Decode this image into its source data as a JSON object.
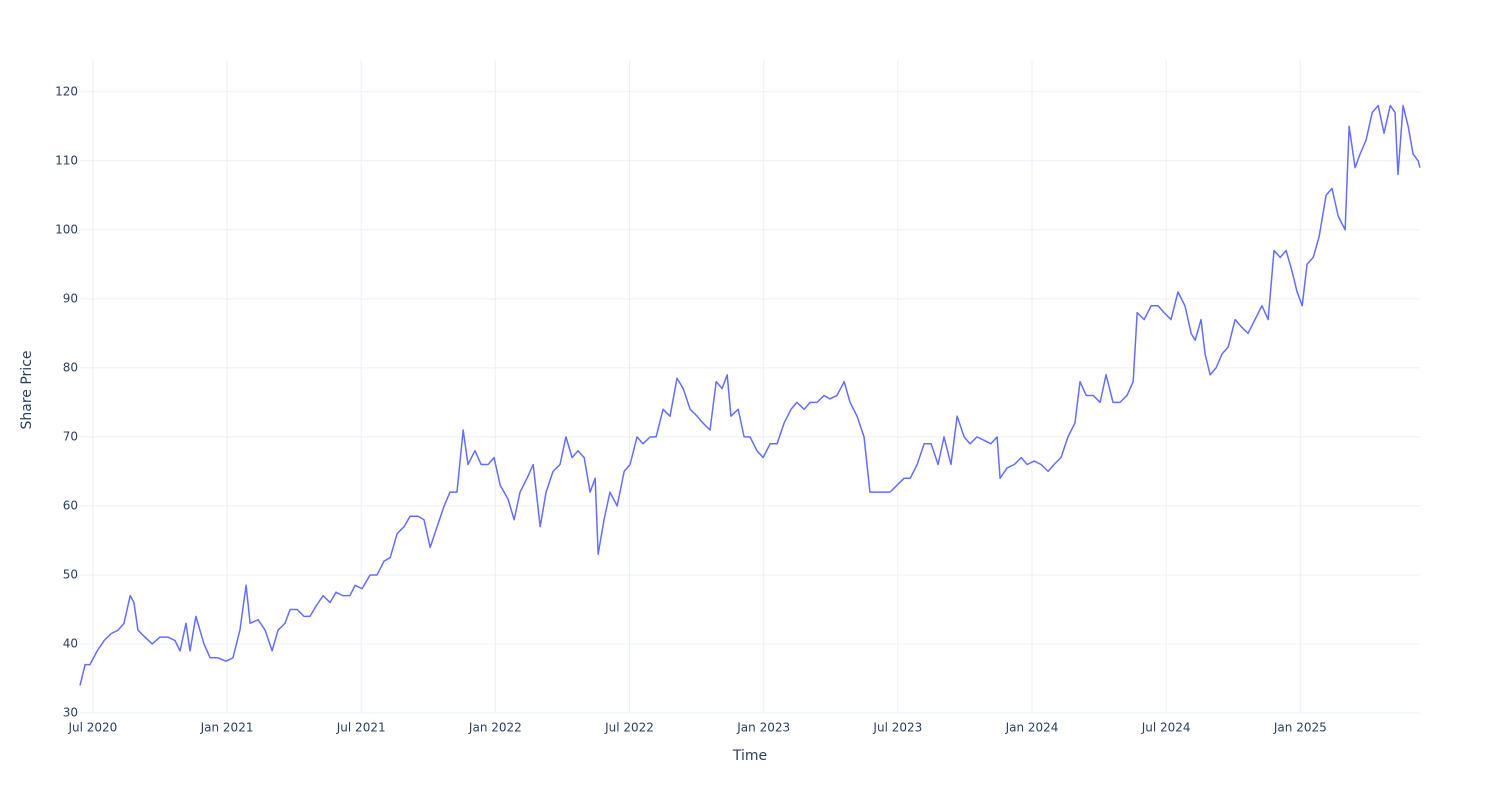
{
  "chart_data": {
    "type": "line",
    "xlabel": "Time",
    "ylabel": "Share Price",
    "xlim": [
      2020.452,
      2025.446
    ],
    "ylim": [
      30,
      124.6
    ],
    "xticks": [
      {
        "value": 2020.5,
        "label": "Jul 2020"
      },
      {
        "value": 2021,
        "label": "Jan 2021"
      },
      {
        "value": 2021.5,
        "label": "Jul 2021"
      },
      {
        "value": 2022,
        "label": "Jan 2022"
      },
      {
        "value": 2022.5,
        "label": "Jul 2022"
      },
      {
        "value": 2023,
        "label": "Jan 2023"
      },
      {
        "value": 2023.5,
        "label": "Jul 2023"
      },
      {
        "value": 2024,
        "label": "Jan 2024"
      },
      {
        "value": 2024.5,
        "label": "Jul 2024"
      },
      {
        "value": 2025,
        "label": "Jan 2025"
      }
    ],
    "yticks": [
      30,
      40,
      50,
      60,
      70,
      80,
      90,
      100,
      110,
      120
    ],
    "grid": true,
    "series": [
      {
        "color": "#636efa",
        "x": [
          2020.452,
          2020.471,
          2020.489,
          2020.516,
          2020.542,
          2020.568,
          2020.594,
          2020.616,
          2020.639,
          2020.653,
          2020.668,
          2020.694,
          2020.721,
          2020.75,
          2020.78,
          2020.806,
          2020.825,
          2020.847,
          2020.862,
          2020.884,
          2020.914,
          2020.937,
          2020.966,
          2020.996,
          2021.022,
          2021.048,
          2021.071,
          2021.086,
          2021.116,
          2021.142,
          2021.168,
          2021.19,
          2021.216,
          2021.235,
          2021.261,
          2021.287,
          2021.309,
          2021.332,
          2021.358,
          2021.384,
          2021.406,
          2021.432,
          2021.458,
          2021.477,
          2021.503,
          2021.533,
          2021.559,
          2021.585,
          2021.608,
          2021.634,
          2021.66,
          2021.682,
          2021.712,
          2021.734,
          2021.757,
          2021.783,
          2021.809,
          2021.831,
          2021.857,
          2021.88,
          2021.898,
          2021.924,
          2021.947,
          2021.973,
          2021.995,
          2022.018,
          2022.047,
          2022.07,
          2022.092,
          2022.118,
          2022.141,
          2022.167,
          2022.189,
          2022.215,
          2022.241,
          2022.263,
          2022.286,
          2022.308,
          2022.331,
          2022.353,
          2022.372,
          2022.383,
          2022.405,
          2022.427,
          2022.454,
          2022.48,
          2022.502,
          2022.528,
          2022.55,
          2022.577,
          2022.599,
          2022.625,
          2022.651,
          2022.677,
          2022.7,
          2022.726,
          2022.752,
          2022.774,
          2022.8,
          2022.823,
          2022.845,
          2022.864,
          2022.878,
          2022.905,
          2022.927,
          2022.949,
          2022.975,
          2022.998,
          2023.024,
          2023.05,
          2023.076,
          2023.102,
          2023.124,
          2023.151,
          2023.173,
          2023.199,
          2023.225,
          2023.247,
          2023.273,
          2023.3,
          2023.322,
          2023.348,
          2023.374,
          2023.396,
          2023.423,
          2023.449,
          2023.471,
          2023.497,
          2023.523,
          2023.546,
          2023.572,
          2023.598,
          2023.624,
          2023.65,
          2023.672,
          2023.698,
          2023.721,
          2023.747,
          2023.769,
          2023.795,
          2023.821,
          2023.847,
          2023.87,
          2023.881,
          2023.907,
          2023.934,
          2023.96,
          2023.982,
          2024.008,
          2024.034,
          2024.06,
          2024.082,
          2024.108,
          2024.134,
          2024.16,
          2024.179,
          2024.202,
          2024.228,
          2024.254,
          2024.276,
          2024.302,
          2024.328,
          2024.354,
          2024.377,
          2024.392,
          2024.418,
          2024.444,
          2024.47,
          2024.492,
          2024.518,
          2024.544,
          2024.57,
          2024.593,
          2024.608,
          2024.63,
          2024.645,
          2024.664,
          2024.686,
          2024.708,
          2024.731,
          2024.757,
          2024.779,
          2024.805,
          2024.831,
          2024.857,
          2024.88,
          2024.902,
          2024.925,
          2024.947,
          2024.969,
          2024.988,
          2025.007,
          2025.025,
          2025.048,
          2025.07,
          2025.096,
          2025.118,
          2025.141,
          2025.167,
          2025.182,
          2025.204,
          2025.223,
          2025.245,
          2025.268,
          2025.29,
          2025.312,
          2025.335,
          2025.353,
          2025.364,
          2025.383,
          2025.402,
          2025.42,
          2025.439,
          2025.446
        ],
        "values": [
          34,
          37,
          37,
          39,
          40.5,
          41.5,
          42,
          43,
          47,
          46,
          42,
          41,
          40,
          41,
          41,
          40.5,
          39,
          43,
          39,
          44,
          40,
          38,
          38,
          37.5,
          38,
          42,
          48.5,
          43,
          43.5,
          42,
          39,
          42,
          43,
          45,
          45,
          44,
          44,
          45.5,
          47,
          46,
          47.5,
          47,
          47,
          48.5,
          48,
          50,
          50,
          52,
          52.5,
          56,
          57,
          58.5,
          58.5,
          58,
          54,
          57,
          60,
          62,
          62,
          71,
          66,
          68,
          66,
          66,
          67,
          63,
          61,
          58,
          62,
          64,
          66,
          57,
          62,
          65,
          66,
          70,
          67,
          68,
          67,
          62,
          64,
          53,
          58,
          62,
          60,
          65,
          66,
          70,
          69,
          70,
          70,
          74,
          73,
          78.5,
          77,
          74,
          73,
          72,
          71,
          78,
          77,
          79,
          73,
          74,
          70,
          70,
          68,
          67,
          69,
          69,
          72,
          74,
          75,
          74,
          75,
          75,
          76,
          75.5,
          76,
          78,
          75,
          73,
          70,
          62,
          62,
          62,
          62,
          63,
          64,
          64,
          66,
          69,
          69,
          66,
          70,
          66,
          73,
          70,
          69,
          70,
          69.5,
          69,
          70,
          64,
          65.5,
          66,
          67,
          66,
          66.5,
          66,
          65,
          66,
          67,
          70,
          72,
          78,
          76,
          76,
          75,
          79,
          75,
          75,
          76,
          78,
          88,
          87,
          89,
          89,
          88,
          87,
          91,
          89,
          85,
          84,
          87,
          82,
          79,
          80,
          82,
          83,
          87,
          86,
          85,
          87,
          89,
          87,
          97,
          96,
          97,
          94,
          91,
          89,
          95,
          96,
          99,
          105,
          106,
          102,
          100,
          115,
          109,
          111,
          113,
          117,
          118,
          114,
          118,
          117,
          108,
          118,
          115,
          111,
          110,
          109
        ]
      }
    ]
  }
}
